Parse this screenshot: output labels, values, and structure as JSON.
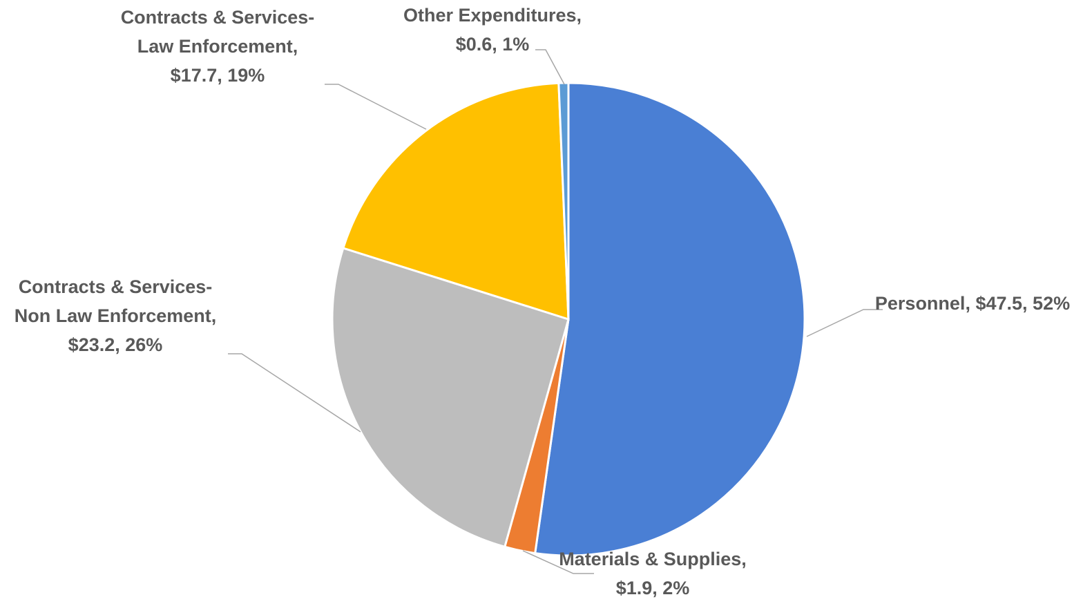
{
  "chart_data": {
    "type": "pie",
    "categories": [
      "Personnel",
      "Materials & Supplies",
      "Contracts & Services-Non Law Enforcement",
      "Contracts & Services-Law Enforcement",
      "Other Expenditures"
    ],
    "values": [
      47.5,
      1.9,
      23.2,
      17.7,
      0.6
    ],
    "value_labels": [
      "$47.5",
      "$1.9",
      "$23.2",
      "$17.7",
      "$0.6"
    ],
    "percents": [
      52,
      2,
      26,
      19,
      1
    ],
    "percent_labels": [
      "52%",
      "2%",
      "26%",
      "19%",
      "1%"
    ],
    "label_separator": ", ",
    "colors": [
      "#4a7fd4",
      "#ed7d31",
      "#bdbdbd",
      "#ffc000",
      "#5b9bd5"
    ]
  }
}
